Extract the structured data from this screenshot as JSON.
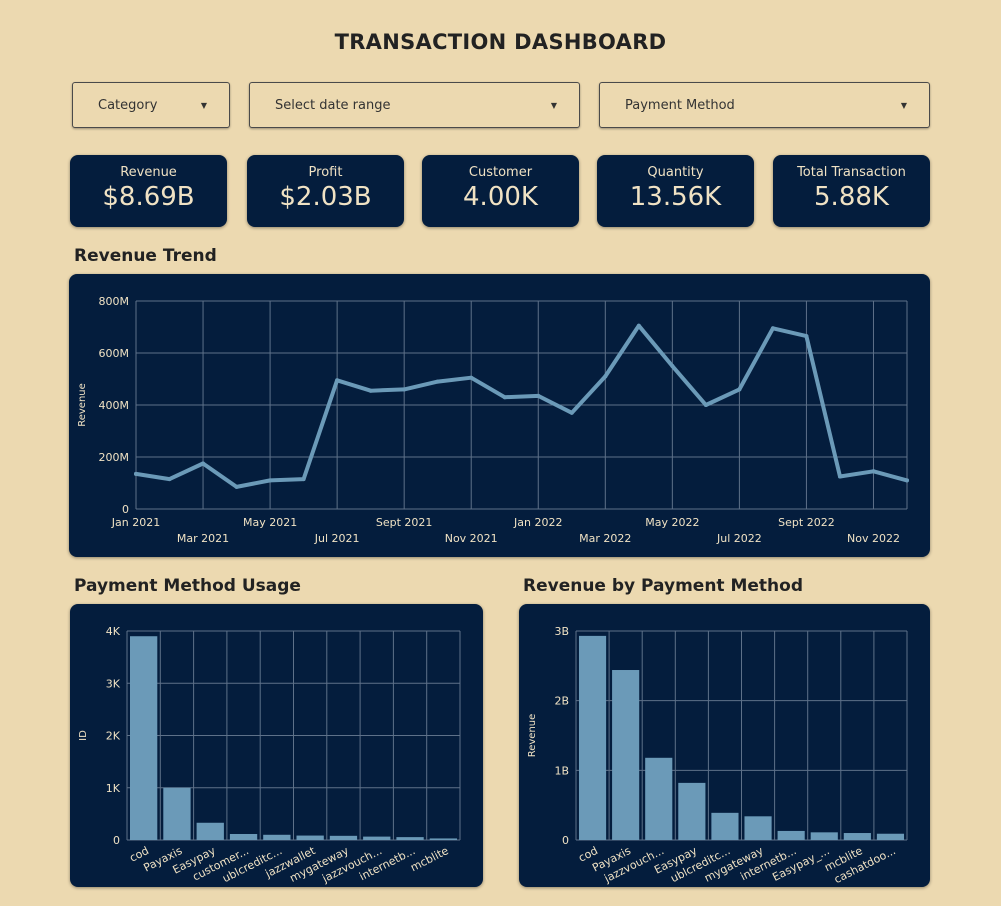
{
  "header": {
    "title": "TRANSACTION DASHBOARD"
  },
  "filters": {
    "category": "Category",
    "date_range": "Select date range",
    "payment_method": "Payment Method"
  },
  "kpis": [
    {
      "label": "Revenue",
      "value": "$8.69B"
    },
    {
      "label": "Profit",
      "value": "$2.03B"
    },
    {
      "label": "Customer",
      "value": "4.00K"
    },
    {
      "label": "Quantity",
      "value": "13.56K"
    },
    {
      "label": "Total Transaction",
      "value": "5.88K"
    }
  ],
  "colors": {
    "background": "#ecd9b0",
    "panel": "#041d3d",
    "series": "#6b9ab8",
    "text": "#f0e2c4"
  },
  "sections": {
    "trend_title": "Revenue Trend",
    "usage_title": "Payment Method Usage",
    "revenue_pm_title": "Revenue by Payment Method"
  },
  "chart_data": [
    {
      "id": "revenue_trend",
      "type": "line",
      "title": "Revenue Trend",
      "ylabel": "Revenue",
      "ylim": [
        0,
        800
      ],
      "yticks": [
        0,
        200,
        400,
        600,
        800
      ],
      "ytick_labels": [
        "0",
        "200M",
        "400M",
        "600M",
        "800M"
      ],
      "x": [
        "Jan 2021",
        "Feb 2021",
        "Mar 2021",
        "Apr 2021",
        "May 2021",
        "Jun 2021",
        "Jul 2021",
        "Aug 2021",
        "Sept 2021",
        "Oct 2021",
        "Nov 2021",
        "Dec 2021",
        "Jan 2022",
        "Feb 2022",
        "Mar 2022",
        "Apr 2022",
        "May 2022",
        "Jun 2022",
        "Jul 2022",
        "Aug 2022",
        "Sept 2022",
        "Oct 2022",
        "Nov 2022",
        "Dec 2022"
      ],
      "xtick_labels_upper": [
        "Jan 2021",
        "May 2021",
        "Sept 2021",
        "Jan 2022",
        "May 2022",
        "Sept 2022"
      ],
      "xtick_labels_lower": [
        "Mar 2021",
        "Jul 2021",
        "Nov 2021",
        "Mar 2022",
        "Jul 2022",
        "Nov 2022"
      ],
      "values": [
        135,
        115,
        175,
        85,
        110,
        115,
        495,
        455,
        460,
        490,
        505,
        430,
        435,
        370,
        510,
        705,
        550,
        400,
        460,
        695,
        665,
        125,
        145,
        110
      ]
    },
    {
      "id": "payment_usage",
      "type": "bar",
      "title": "Payment Method Usage",
      "ylabel": "ID",
      "ylim": [
        0,
        4000
      ],
      "yticks": [
        0,
        1000,
        2000,
        3000,
        4000
      ],
      "ytick_labels": [
        "0",
        "1K",
        "2K",
        "3K",
        "4K"
      ],
      "categories": [
        "cod",
        "Payaxis",
        "Easypay",
        "customer...",
        "ublcreditc...",
        "jazzwallet",
        "mygateway",
        "jazzvouch...",
        "internetb...",
        "mcblite"
      ],
      "values": [
        3900,
        1000,
        330,
        115,
        100,
        85,
        80,
        65,
        55,
        30
      ]
    },
    {
      "id": "revenue_by_payment",
      "type": "bar",
      "title": "Revenue by Payment Method",
      "ylabel": "Revenue",
      "ylim": [
        0,
        3
      ],
      "yticks": [
        0,
        1,
        2,
        3
      ],
      "ytick_labels": [
        "0",
        "1B",
        "2B",
        "3B"
      ],
      "categories": [
        "cod",
        "Payaxis",
        "jazzvouch...",
        "Easypay",
        "ublcreditc...",
        "mygateway",
        "internetb...",
        "Easypay_...",
        "mcblite",
        "cashatdoo..."
      ],
      "values": [
        2.93,
        2.44,
        1.18,
        0.82,
        0.39,
        0.34,
        0.13,
        0.11,
        0.1,
        0.09
      ]
    }
  ]
}
